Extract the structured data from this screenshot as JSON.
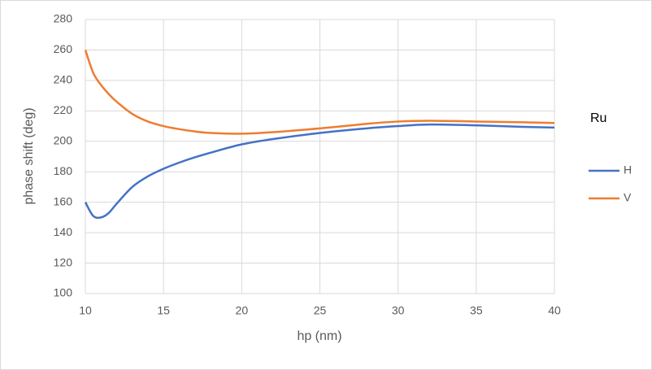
{
  "chart_data": {
    "type": "line",
    "x_label": "hp (nm)",
    "y_label": "phase shift (deg)",
    "legend_title": "Ru",
    "legend": "right",
    "grid": true,
    "x": [
      10,
      10.5,
      11,
      11.5,
      12,
      13,
      14,
      15,
      16,
      17,
      18,
      20,
      22,
      25,
      28,
      30,
      32,
      35,
      38,
      40
    ],
    "series": [
      {
        "name": "H",
        "color": "#4472c4",
        "values": [
          160,
          151,
          150,
          153,
          159,
          170,
          177,
          182,
          186,
          189.5,
          192.5,
          198,
          201.5,
          205.5,
          208.5,
          210,
          211,
          210.5,
          209.5,
          209
        ]
      },
      {
        "name": "V",
        "color": "#ed7d31",
        "values": [
          260,
          245,
          237,
          231,
          226,
          218,
          213,
          210,
          208,
          206.5,
          205.5,
          205,
          206,
          208.5,
          211.5,
          213,
          213.5,
          213,
          212.5,
          212
        ]
      }
    ],
    "xlim": [
      10,
      40
    ],
    "xticks": [
      10,
      15,
      20,
      25,
      30,
      35,
      40
    ],
    "ylim": [
      100,
      280
    ],
    "yticks": [
      100,
      120,
      140,
      160,
      180,
      200,
      220,
      240,
      260,
      280
    ]
  }
}
